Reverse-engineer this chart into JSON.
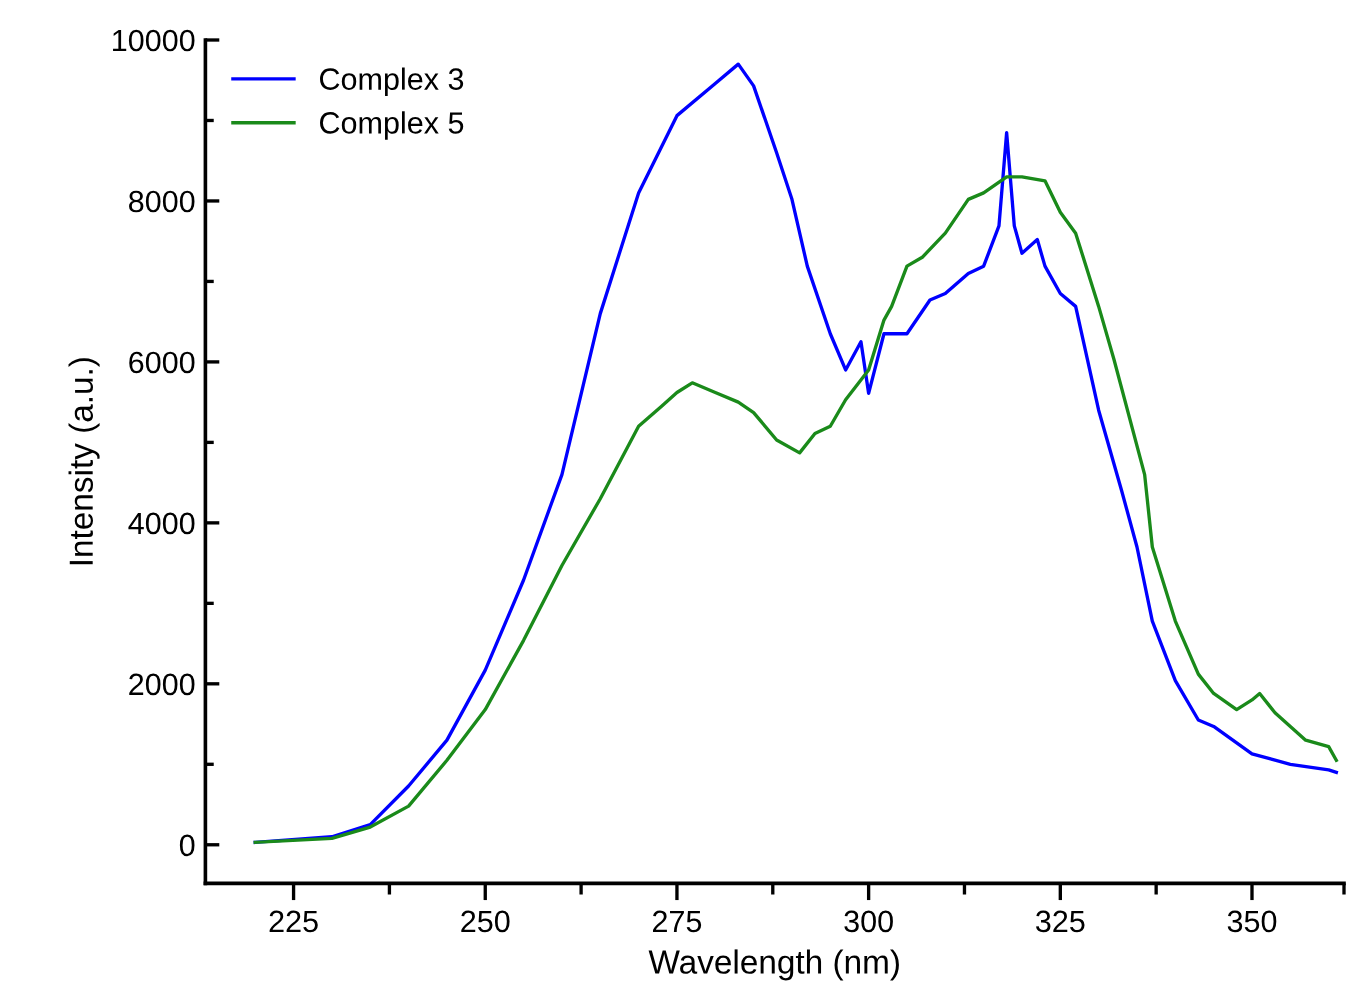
{
  "chart_data": {
    "type": "line",
    "xlabel": "Wavelength (nm)",
    "ylabel": "Intensity (a.u.)",
    "xlim": [
      213.5,
      362
    ],
    "ylim": [
      -480,
      10000
    ],
    "xticks": [
      225,
      {
        "value": 237.5,
        "label": null
      },
      250,
      {
        "value": 262.5,
        "label": null
      },
      275,
      {
        "value": 287.5,
        "label": null
      },
      300,
      {
        "value": 312.5,
        "label": null
      },
      325,
      {
        "value": 337.5,
        "label": null
      },
      350,
      {
        "value": 362,
        "label": null
      }
    ],
    "yticks": [
      0,
      {
        "value": 1000,
        "label": null
      },
      2000,
      {
        "value": 3000,
        "label": null
      },
      4000,
      {
        "value": 5000,
        "label": null
      },
      6000,
      {
        "value": 7000,
        "label": null
      },
      8000,
      {
        "value": 9000,
        "label": null
      },
      10000
    ],
    "grid": false,
    "legend": "top left",
    "marker": "none",
    "line_style": "solid",
    "series": [
      {
        "name": "Complex 3",
        "color": "#0000ff",
        "x": [
          220,
          230,
          235,
          240,
          245,
          250,
          255,
          260,
          265,
          270,
          275,
          280,
          283,
          285,
          288,
          290,
          292,
          295,
          297,
          299,
          300,
          302,
          305,
          308,
          310,
          313,
          315,
          317,
          318,
          319,
          320,
          322,
          323,
          325,
          327,
          330,
          333,
          335,
          337,
          340,
          343,
          345,
          350,
          355,
          360,
          361
        ],
        "values": [
          30,
          100,
          250,
          730,
          1300,
          2170,
          3290,
          4600,
          6600,
          8100,
          9060,
          9460,
          9700,
          9430,
          8600,
          8020,
          7190,
          6350,
          5900,
          6250,
          5610,
          6350,
          6350,
          6770,
          6850,
          7100,
          7190,
          7690,
          8850,
          7690,
          7350,
          7520,
          7190,
          6850,
          6690,
          5400,
          4400,
          3700,
          2780,
          2040,
          1550,
          1470,
          1130,
          1000,
          930,
          900
        ]
      },
      {
        "name": "Complex 5",
        "color": "#1a8a1a",
        "x": [
          220,
          230,
          235,
          240,
          245,
          250,
          255,
          260,
          265,
          270,
          273,
          275,
          277,
          280,
          283,
          285,
          288,
          291,
          293,
          295,
          297,
          300,
          302,
          303,
          305,
          307,
          310,
          313,
          315,
          318,
          320,
          323,
          325,
          327,
          330,
          332,
          336,
          337,
          340,
          343,
          345,
          348,
          350,
          351,
          353,
          355,
          357,
          360,
          361
        ],
        "values": [
          30,
          80,
          220,
          480,
          1050,
          1680,
          2540,
          3470,
          4300,
          5200,
          5450,
          5620,
          5740,
          5620,
          5500,
          5370,
          5030,
          4870,
          5110,
          5200,
          5530,
          5900,
          6520,
          6690,
          7190,
          7300,
          7600,
          8020,
          8100,
          8300,
          8300,
          8250,
          7860,
          7600,
          6690,
          6030,
          4600,
          3700,
          2780,
          2120,
          1880,
          1680,
          1800,
          1880,
          1640,
          1470,
          1300,
          1220,
          1050
        ]
      }
    ]
  }
}
